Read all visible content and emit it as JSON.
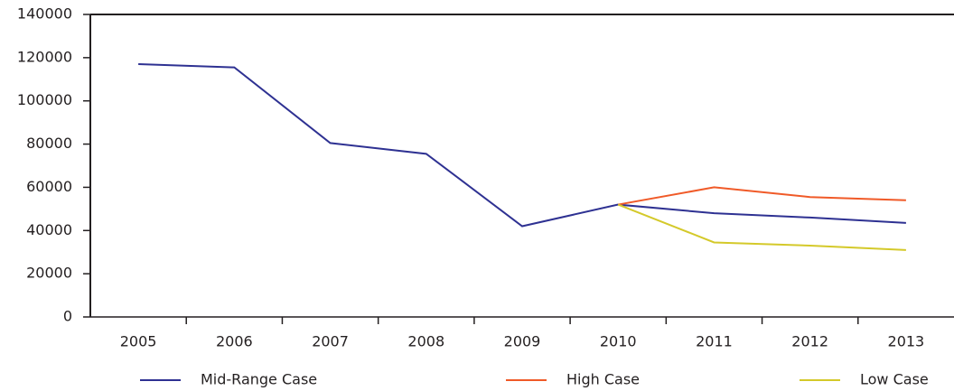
{
  "chart_data": {
    "type": "line",
    "categories": [
      "2005",
      "2006",
      "2007",
      "2008",
      "2009",
      "2010",
      "2011",
      "2012",
      "2013"
    ],
    "series": [
      {
        "name": "Mid-Range Case",
        "color": "#2e3192",
        "values": [
          117000,
          115500,
          80500,
          75500,
          42000,
          52000,
          48000,
          46000,
          43500
        ]
      },
      {
        "name": "High Case",
        "color": "#f05a28",
        "values": [
          null,
          null,
          null,
          null,
          null,
          52000,
          60000,
          55500,
          54000
        ]
      },
      {
        "name": "Low Case",
        "color": "#d4c92a",
        "values": [
          null,
          null,
          null,
          null,
          null,
          52000,
          34500,
          33000,
          31000
        ]
      }
    ],
    "ylim": [
      0,
      140000
    ],
    "yticks": [
      0,
      20000,
      40000,
      60000,
      80000,
      100000,
      120000,
      140000
    ],
    "legend": "bottom"
  }
}
